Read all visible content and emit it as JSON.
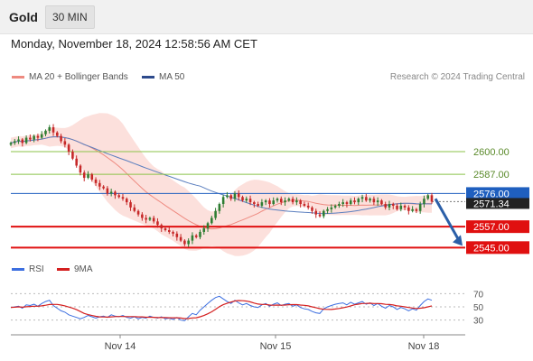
{
  "header": {
    "title": "Gold",
    "timeframe": "30 MIN",
    "timestamp": "Monday, November 18, 2024 12:58:56 AM CET"
  },
  "legend": {
    "bollinger": "MA 20 + Bollinger Bands",
    "ma50": "MA 50",
    "credit": "Research © 2024 Trading Central"
  },
  "oscillator": {
    "rsi_label": "RSI",
    "ma_label": "9MA",
    "levels": [
      70,
      50,
      30
    ]
  },
  "colors": {
    "bull": "#2e7d32",
    "bear": "#c62828",
    "bollinger_fill": "#fbd5d0",
    "ma20": "#ee8a80",
    "ma50": "#5b7fbf",
    "resistance": "#8bc34a",
    "pivot": "#1f5fbf",
    "support": "#e01010",
    "rsi": "#3d6fe0",
    "rsi_ma": "#d42020",
    "arrow": "#2b5fa8"
  },
  "chart_data": {
    "type": "candlestick",
    "instrument": "Gold",
    "interval": "30 MIN",
    "x_labels": [
      "Nov 14",
      "Nov 15",
      "Nov 18"
    ],
    "ylim": [
      2540,
      2629
    ],
    "price_labels": {
      "current": "2571.34",
      "levels": [
        {
          "value": 2600.0,
          "label": "2600.00",
          "kind": "resistance"
        },
        {
          "value": 2587.0,
          "label": "2587.00",
          "kind": "resistance"
        },
        {
          "value": 2576.0,
          "label": "2576.00",
          "kind": "pivot"
        },
        {
          "value": 2557.0,
          "label": "2557.00",
          "kind": "support"
        },
        {
          "value": 2545.0,
          "label": "2545.00",
          "kind": "support"
        }
      ]
    },
    "scenario": {
      "from": 2573,
      "to": 2546,
      "direction": "down"
    },
    "closes": [
      2605,
      2606,
      2607,
      2605,
      2608,
      2607,
      2609,
      2608,
      2610,
      2612,
      2614,
      2611,
      2609,
      2606,
      2604,
      2600,
      2596,
      2592,
      2588,
      2585,
      2587,
      2584,
      2582,
      2580,
      2579,
      2576,
      2577,
      2575,
      2574,
      2573,
      2571,
      2568,
      2566,
      2564,
      2562,
      2561,
      2562,
      2560,
      2558,
      2556,
      2555,
      2554,
      2553,
      2551,
      2549,
      2547,
      2549,
      2552,
      2551,
      2554,
      2556,
      2559,
      2562,
      2566,
      2570,
      2574,
      2575,
      2573,
      2576,
      2574,
      2572,
      2573,
      2571,
      2570,
      2569,
      2571,
      2572,
      2570,
      2572,
      2573,
      2571,
      2572,
      2573,
      2571,
      2572,
      2570,
      2569,
      2568,
      2566,
      2564,
      2563,
      2566,
      2567,
      2568,
      2569,
      2570,
      2571,
      2570,
      2572,
      2571,
      2573,
      2574,
      2572,
      2573,
      2571,
      2572,
      2570,
      2568,
      2570,
      2569,
      2567,
      2569,
      2568,
      2566,
      2567,
      2566,
      2570,
      2573,
      2575,
      2571.34
    ],
    "rsi": [
      49,
      50,
      51,
      48,
      53,
      52,
      54,
      51,
      55,
      58,
      60,
      52,
      48,
      44,
      42,
      38,
      36,
      34,
      32,
      34,
      37,
      35,
      33,
      35,
      36,
      34,
      38,
      36,
      35,
      37,
      34,
      33,
      35,
      32,
      34,
      33,
      36,
      34,
      33,
      35,
      32,
      33,
      31,
      34,
      30,
      29,
      35,
      40,
      38,
      45,
      50,
      55,
      60,
      64,
      66,
      62,
      58,
      55,
      60,
      56,
      53,
      55,
      52,
      50,
      49,
      53,
      55,
      51,
      54,
      56,
      52,
      54,
      55,
      51,
      53,
      49,
      47,
      46,
      43,
      41,
      40,
      47,
      50,
      52,
      54,
      55,
      56,
      53,
      57,
      54,
      56,
      58,
      54,
      56,
      52,
      55,
      51,
      48,
      52,
      50,
      46,
      49,
      47,
      44,
      47,
      45,
      52,
      58,
      62,
      60
    ]
  }
}
